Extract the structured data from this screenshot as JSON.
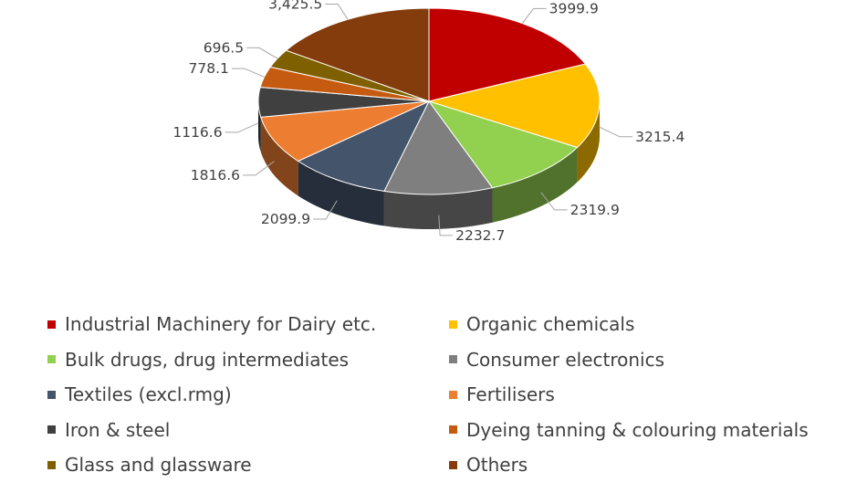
{
  "chart_data": {
    "type": "pie",
    "title": "",
    "categories": [
      "Industrial Machinery for Dairy etc.",
      "Organic chemicals",
      "Bulk drugs, drug intermediates",
      "Consumer electronics",
      "Textiles (excl.rmg)",
      "Fertilisers",
      "Iron & steel",
      "Dyeing tanning & colouring materials",
      "Glass and glassware",
      "Others"
    ],
    "values": [
      3999.9,
      3215.4,
      2319.9,
      2232.7,
      2099.9,
      1816.6,
      1116.6,
      778.1,
      696.5,
      3425.5
    ],
    "data_labels": [
      "3999.9",
      "3215.4",
      "2319.9",
      "2232.7",
      "2099.9",
      "1816.6",
      "1116.6",
      "778.1",
      "696.5",
      "3,425.5"
    ],
    "colors": [
      "#c00000",
      "#ffc000",
      "#92d050",
      "#7f7f7f",
      "#44546a",
      "#ed7d31",
      "#404040",
      "#c55a11",
      "#7f6000",
      "#843c0c"
    ],
    "legend_position": "bottom",
    "style": "3d"
  }
}
